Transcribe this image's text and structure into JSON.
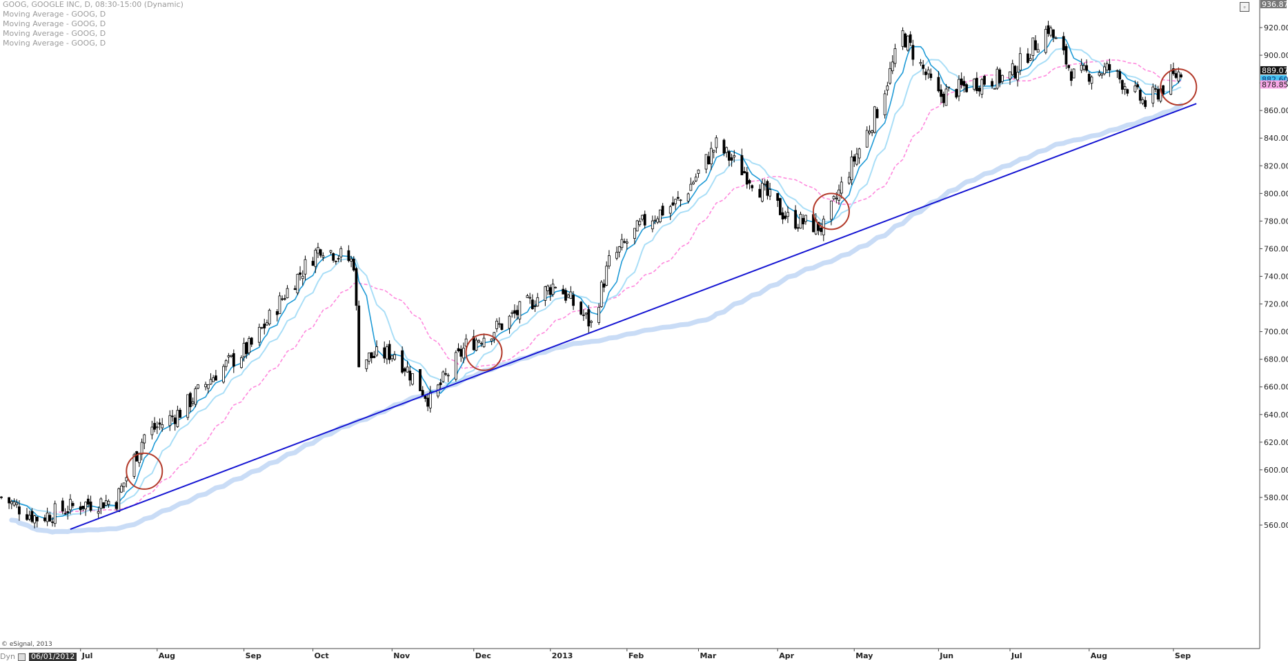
{
  "legend": {
    "title": "GOOG, GOOGLE INC, D, 08:30-15:00 (Dynamic)",
    "ma_lines": [
      "Moving Average - GOOG, D",
      "Moving Average - GOOG, D",
      "Moving Average - GOOG, D",
      "Moving Average - GOOG, D"
    ]
  },
  "footer": {
    "copyright": "© eSignal, 2013",
    "dyn_label": "Dyn",
    "start_date": "06/01/2012"
  },
  "price_tags": {
    "top": "936.87",
    "last": "889.07",
    "ma1": "882.60",
    "ma2": "878.85"
  },
  "chart_data": {
    "type": "candlestick",
    "symbol": "GOOG",
    "title": "GOOG, GOOGLE INC, D, 08:30-15:00 (Dynamic)",
    "ylim": [
      550,
      940
    ],
    "y_ticks": [
      560,
      580,
      600,
      620,
      640,
      660,
      680,
      700,
      720,
      740,
      760,
      780,
      800,
      820,
      840,
      860,
      880,
      900,
      920
    ],
    "month_labels": [
      "Jul",
      "Aug",
      "Sep",
      "Oct",
      "Nov",
      "Dec",
      "2013",
      "Feb",
      "Mar",
      "Apr",
      "May",
      "Jun",
      "Jul",
      "Aug",
      "Sep"
    ],
    "x_range": [
      "2012-06-01",
      "2013-09-06"
    ],
    "bars_approx_close": [
      {
        "date": "2012-06-01",
        "value": 580
      },
      {
        "date": "2012-06-15",
        "value": 565
      },
      {
        "date": "2012-07-02",
        "value": 575
      },
      {
        "date": "2012-07-16",
        "value": 578
      },
      {
        "date": "2012-07-27",
        "value": 625
      },
      {
        "date": "2012-08-10",
        "value": 642
      },
      {
        "date": "2012-08-24",
        "value": 670
      },
      {
        "date": "2012-09-07",
        "value": 690
      },
      {
        "date": "2012-09-21",
        "value": 730
      },
      {
        "date": "2012-10-04",
        "value": 762
      },
      {
        "date": "2012-10-17",
        "value": 750
      },
      {
        "date": "2012-10-19",
        "value": 680
      },
      {
        "date": "2012-11-02",
        "value": 685
      },
      {
        "date": "2012-11-16",
        "value": 650
      },
      {
        "date": "2012-11-30",
        "value": 690
      },
      {
        "date": "2012-12-14",
        "value": 705
      },
      {
        "date": "2013-01-04",
        "value": 735
      },
      {
        "date": "2013-01-18",
        "value": 705
      },
      {
        "date": "2013-01-25",
        "value": 750
      },
      {
        "date": "2013-02-08",
        "value": 780
      },
      {
        "date": "2013-02-22",
        "value": 795
      },
      {
        "date": "2013-03-08",
        "value": 835
      },
      {
        "date": "2013-03-22",
        "value": 810
      },
      {
        "date": "2013-04-05",
        "value": 782
      },
      {
        "date": "2013-04-19",
        "value": 775
      },
      {
        "date": "2013-04-26",
        "value": 805
      },
      {
        "date": "2013-05-10",
        "value": 860
      },
      {
        "date": "2013-05-20",
        "value": 915
      },
      {
        "date": "2013-06-03",
        "value": 870
      },
      {
        "date": "2013-06-17",
        "value": 880
      },
      {
        "date": "2013-07-01",
        "value": 885
      },
      {
        "date": "2013-07-16",
        "value": 920
      },
      {
        "date": "2013-07-26",
        "value": 885
      },
      {
        "date": "2013-08-09",
        "value": 890
      },
      {
        "date": "2013-08-23",
        "value": 865
      },
      {
        "date": "2013-09-06",
        "value": 889
      }
    ],
    "ma_fast_color": "#1e9ad6",
    "ma_mid_color": "#a9def7",
    "ma_slow_color": "#ff88dd",
    "ma_long_color": "#c6daf5",
    "trendline": {
      "color": "#1414d2",
      "from": {
        "date": "2012-06-28",
        "value": 557
      },
      "to": {
        "date": "2013-09-12",
        "value": 865
      }
    },
    "circles_color": "#b33a2a",
    "circles": [
      {
        "date": "2012-07-27",
        "value": 599
      },
      {
        "date": "2012-12-07",
        "value": 685
      },
      {
        "date": "2013-04-22",
        "value": 787
      },
      {
        "date": "2013-09-05",
        "value": 877
      }
    ]
  }
}
